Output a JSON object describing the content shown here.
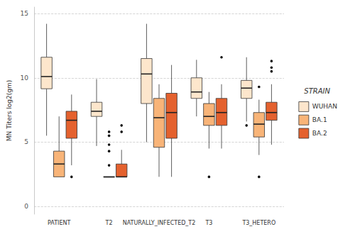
{
  "chart_data": {
    "type": "boxplot",
    "y_label": "MN Titers log2(gm)",
    "legend_title": "STRAIN",
    "legend": "right",
    "grid": true,
    "categories": [
      "PATIENT",
      "T2",
      "NATURALLY_INFECTED_T2",
      "T3",
      "T3_HETERO"
    ],
    "ylim": [
      -0.6,
      15.5
    ],
    "yticks": [
      0,
      5,
      10,
      15
    ],
    "series": [
      {
        "name": "WUHAN",
        "color": "#fde6cc",
        "boxes": [
          {
            "min": 5.5,
            "q1": 9.15,
            "median": 10.1,
            "q3": 11.6,
            "max": 14.2,
            "outliers": []
          },
          {
            "min": 4.7,
            "q1": 7.0,
            "median": 7.4,
            "q3": 8.1,
            "max": 9.9,
            "outliers": []
          },
          {
            "min": 5.0,
            "q1": 8.0,
            "median": 10.3,
            "q3": 11.5,
            "max": 14.2,
            "outliers": []
          },
          {
            "min": 7.0,
            "q1": 8.4,
            "median": 8.9,
            "q3": 10.0,
            "max": 11.4,
            "outliers": []
          },
          {
            "min": 6.6,
            "q1": 8.4,
            "median": 9.2,
            "q3": 9.8,
            "max": 11.6,
            "outliers": [
              6.3
            ]
          }
        ]
      },
      {
        "name": "BA.1",
        "color": "#f8b478",
        "boxes": [
          {
            "min": 2.3,
            "q1": 2.3,
            "median": 3.3,
            "q3": 4.3,
            "max": 7.0,
            "outliers": []
          },
          {
            "min": 2.3,
            "q1": 2.3,
            "median": 2.3,
            "q3": 2.3,
            "max": 2.3,
            "outliers": [
              5.8,
              5.5,
              4.8,
              4.3,
              3.2
            ]
          },
          {
            "min": 2.3,
            "q1": 4.6,
            "median": 6.9,
            "q3": 8.4,
            "max": 9.5,
            "outliers": []
          },
          {
            "min": 4.5,
            "q1": 6.3,
            "median": 7.0,
            "q3": 8.0,
            "max": 8.9,
            "outliers": [
              2.3
            ]
          },
          {
            "min": 4.0,
            "q1": 5.4,
            "median": 6.4,
            "q3": 7.3,
            "max": 8.3,
            "outliers": [
              9.3,
              2.3
            ]
          }
        ]
      },
      {
        "name": "BA.2",
        "color": "#e4612e",
        "boxes": [
          {
            "min": 3.2,
            "q1": 5.3,
            "median": 6.7,
            "q3": 7.4,
            "max": 8.7,
            "outliers": [
              2.3
            ]
          },
          {
            "min": 2.3,
            "q1": 2.3,
            "median": 2.3,
            "q3": 3.3,
            "max": 4.4,
            "outliers": [
              5.8,
              6.3
            ]
          },
          {
            "min": 2.3,
            "q1": 5.3,
            "median": 7.3,
            "q3": 8.8,
            "max": 11.0,
            "outliers": []
          },
          {
            "min": 4.5,
            "q1": 6.3,
            "median": 7.3,
            "q3": 8.4,
            "max": 9.5,
            "outliers": [
              11.6
            ]
          },
          {
            "min": 4.8,
            "q1": 6.7,
            "median": 7.3,
            "q3": 8.1,
            "max": 9.5,
            "outliers": [
              10.5,
              10.8,
              11.3
            ]
          }
        ]
      }
    ]
  }
}
